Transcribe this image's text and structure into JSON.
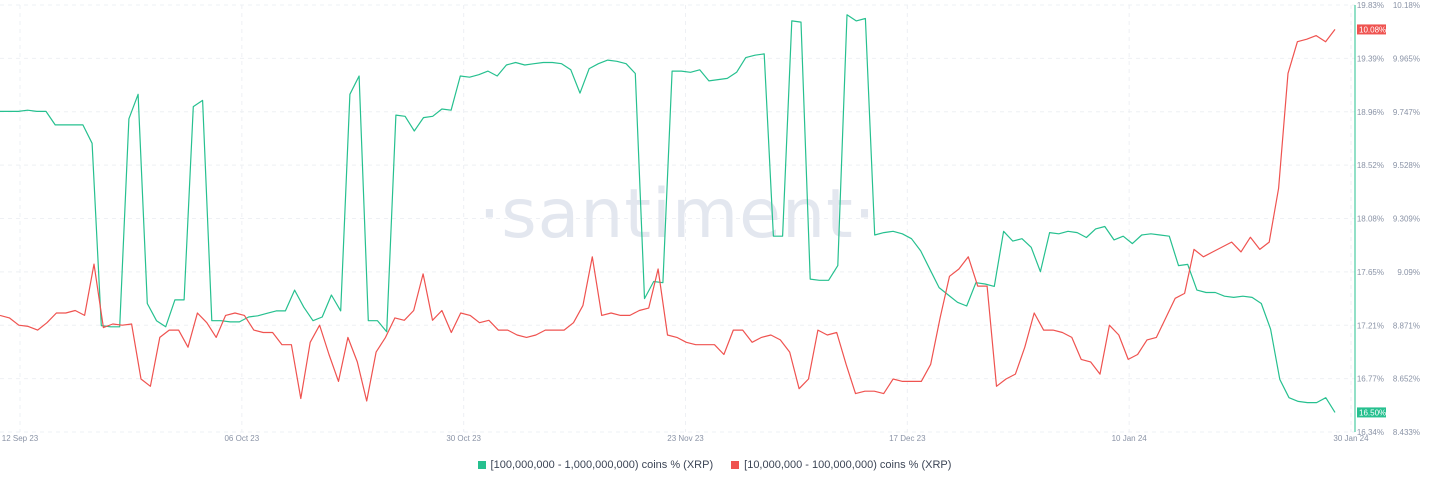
{
  "chart_data": {
    "type": "line",
    "watermark": "·santiment·",
    "x_ticks": [
      "12 Sep 23",
      "06 Oct 23",
      "30 Oct 23",
      "23 Nov 23",
      "17 Dec 23",
      "10 Jan 24",
      "30 Jan 24"
    ],
    "series": [
      {
        "name": "[100,000,000 - 1,000,000,000) coins % (XRP)",
        "color": "#26c08f",
        "axis": "left",
        "ticks": [
          "19.83%",
          "19.39%",
          "18.96%",
          "18.52%",
          "18.08%",
          "17.65%",
          "17.21%",
          "16.77%",
          "16.34%"
        ],
        "ylim": [
          16.34,
          19.83
        ],
        "last_value_label": "16.50%",
        "values": [
          18.96,
          18.96,
          18.96,
          18.97,
          18.96,
          18.96,
          18.85,
          18.85,
          18.85,
          18.85,
          18.7,
          17.21,
          17.2,
          17.2,
          18.9,
          19.1,
          17.39,
          17.25,
          17.2,
          17.42,
          17.42,
          19.0,
          19.05,
          17.25,
          17.25,
          17.24,
          17.24,
          17.28,
          17.29,
          17.31,
          17.33,
          17.33,
          17.5,
          17.36,
          17.25,
          17.28,
          17.46,
          17.33,
          19.1,
          19.25,
          17.25,
          17.25,
          17.16,
          18.93,
          18.92,
          18.8,
          18.91,
          18.92,
          18.98,
          18.97,
          19.25,
          19.24,
          19.26,
          19.29,
          19.25,
          19.34,
          19.36,
          19.34,
          19.35,
          19.36,
          19.36,
          19.35,
          19.3,
          19.11,
          19.31,
          19.35,
          19.38,
          19.37,
          19.35,
          19.27,
          17.43,
          17.57,
          17.56,
          19.29,
          19.29,
          19.28,
          19.3,
          19.21,
          19.22,
          19.23,
          19.28,
          19.4,
          19.42,
          19.43,
          17.94,
          17.94,
          19.7,
          19.69,
          17.59,
          17.58,
          17.58,
          17.7,
          19.75,
          19.7,
          19.72,
          17.95,
          17.97,
          17.98,
          17.96,
          17.92,
          17.82,
          17.67,
          17.52,
          17.46,
          17.4,
          17.37,
          17.56,
          17.55,
          17.53,
          17.98,
          17.9,
          17.92,
          17.85,
          17.65,
          17.97,
          17.96,
          17.98,
          17.97,
          17.93,
          18.0,
          18.02,
          17.91,
          17.94,
          17.88,
          17.95,
          17.96,
          17.95,
          17.94,
          17.7,
          17.71,
          17.5,
          17.48,
          17.48,
          17.45,
          17.44,
          17.45,
          17.44,
          17.39,
          17.18,
          16.77,
          16.62,
          16.59,
          16.58,
          16.58,
          16.62,
          16.5
        ]
      },
      {
        "name": "[10,000,000 - 100,000,000) coins % (XRP)",
        "color": "#ef5350",
        "axis": "right",
        "ticks": [
          "10.18%",
          "9.965%",
          "9.747%",
          "9.528%",
          "9.309%",
          "9.09%",
          "8.871%",
          "8.652%",
          "8.433%"
        ],
        "ylim": [
          8.433,
          10.18
        ],
        "last_value_label": "10.08%",
        "values": [
          8.91,
          8.9,
          8.87,
          8.865,
          8.85,
          8.88,
          8.92,
          8.92,
          8.93,
          8.91,
          9.12,
          8.86,
          8.875,
          8.87,
          8.875,
          8.65,
          8.62,
          8.82,
          8.85,
          8.85,
          8.78,
          8.92,
          8.88,
          8.82,
          8.91,
          8.92,
          8.91,
          8.85,
          8.84,
          8.84,
          8.79,
          8.79,
          8.57,
          8.8,
          8.87,
          8.75,
          8.64,
          8.82,
          8.72,
          8.56,
          8.76,
          8.82,
          8.9,
          8.89,
          8.93,
          9.08,
          8.89,
          8.93,
          8.84,
          8.92,
          8.91,
          8.88,
          8.89,
          8.85,
          8.85,
          8.83,
          8.82,
          8.83,
          8.85,
          8.85,
          8.85,
          8.88,
          8.95,
          9.15,
          8.91,
          8.92,
          8.91,
          8.91,
          8.93,
          8.94,
          9.1,
          8.83,
          8.82,
          8.8,
          8.79,
          8.79,
          8.79,
          8.75,
          8.85,
          8.85,
          8.8,
          8.82,
          8.83,
          8.81,
          8.76,
          8.61,
          8.65,
          8.85,
          8.83,
          8.84,
          8.71,
          8.59,
          8.6,
          8.6,
          8.59,
          8.65,
          8.64,
          8.64,
          8.64,
          8.71,
          8.9,
          9.07,
          9.1,
          9.15,
          9.03,
          9.03,
          8.62,
          8.65,
          8.67,
          8.78,
          8.92,
          8.85,
          8.85,
          8.84,
          8.82,
          8.73,
          8.72,
          8.67,
          8.87,
          8.83,
          8.73,
          8.75,
          8.81,
          8.82,
          8.9,
          8.98,
          9.0,
          9.18,
          9.15,
          9.17,
          9.19,
          9.21,
          9.17,
          9.23,
          9.18,
          9.21,
          9.43,
          9.9,
          10.03,
          10.04,
          10.055,
          10.03,
          10.08
        ]
      }
    ]
  }
}
